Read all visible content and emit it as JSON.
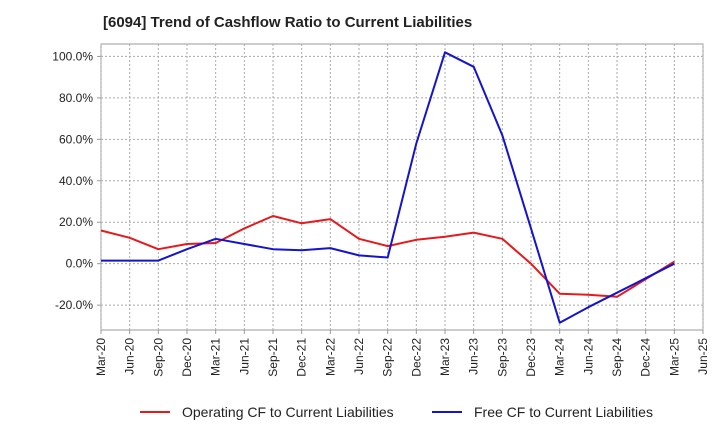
{
  "chart_data": {
    "type": "line",
    "title": "[6094]  Trend of Cashflow Ratio to Current Liabilities",
    "xlabel": "",
    "ylabel": "",
    "x": [
      "Mar-20",
      "Jun-20",
      "Sep-20",
      "Dec-20",
      "Mar-21",
      "Jun-21",
      "Sep-21",
      "Dec-21",
      "Mar-22",
      "Jun-22",
      "Sep-22",
      "Dec-22",
      "Mar-23",
      "Jun-23",
      "Sep-23",
      "Dec-23",
      "Mar-24",
      "Jun-24",
      "Sep-24",
      "Dec-24",
      "Mar-25",
      "Jun-25"
    ],
    "ylim": [
      -32,
      106
    ],
    "yticks": [
      -20,
      0,
      20,
      40,
      60,
      80,
      100
    ],
    "ytick_labels": [
      "-20.0%",
      "0.0%",
      "20.0%",
      "40.0%",
      "60.0%",
      "80.0%",
      "100.0%"
    ],
    "grid": true,
    "legend_position": "bottom",
    "series": [
      {
        "name": "Operating CF to Current Liabilities",
        "color": "#e41a1c",
        "values": [
          16,
          12.5,
          7,
          9.5,
          10,
          17,
          23,
          19.5,
          21.5,
          12,
          8.5,
          11.5,
          13,
          15,
          12,
          0,
          -14.5,
          -15,
          -16,
          -7.5,
          1,
          null
        ]
      },
      {
        "name": "Free CF to Current Liabilities",
        "color": "#1414cc",
        "values": [
          1.5,
          1.5,
          1.5,
          7,
          12,
          9.5,
          7,
          6.5,
          7.5,
          4,
          3,
          58,
          102,
          95,
          62,
          17,
          -28.5,
          -21,
          -14,
          -7,
          0,
          null
        ]
      }
    ]
  }
}
